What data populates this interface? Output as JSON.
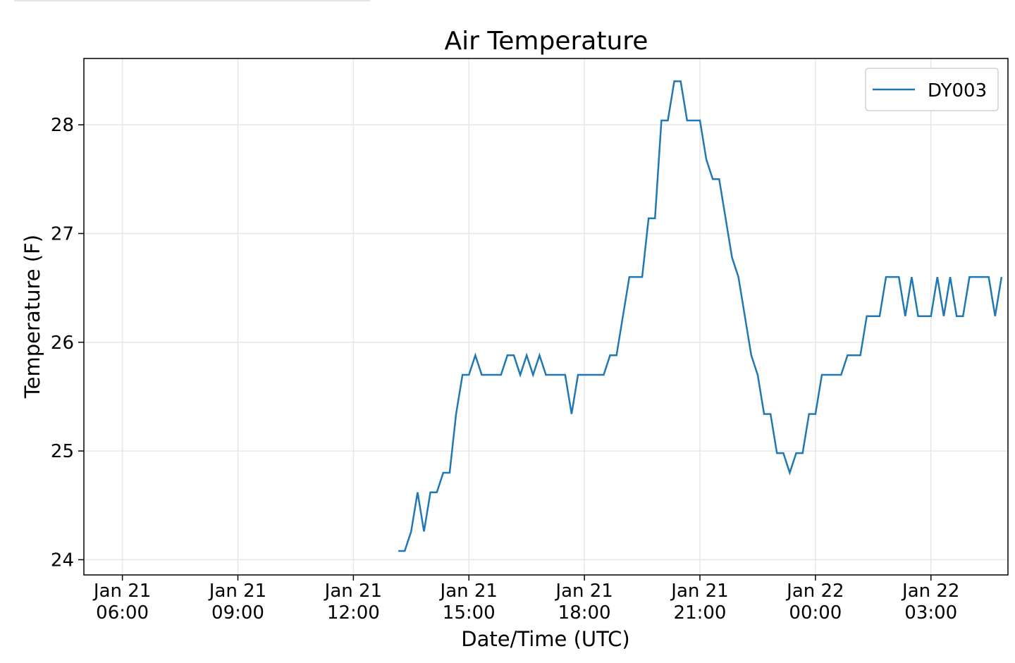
{
  "chart_data": {
    "type": "line",
    "title": "Air Temperature",
    "xlabel": "Date/Time (UTC)",
    "ylabel": "Temperature (F)",
    "x": [
      "Jan 21 13:10",
      "Jan 21 13:20",
      "Jan 21 13:30",
      "Jan 21 13:40",
      "Jan 21 13:50",
      "Jan 21 14:00",
      "Jan 21 14:10",
      "Jan 21 14:20",
      "Jan 21 14:30",
      "Jan 21 14:40",
      "Jan 21 14:50",
      "Jan 21 15:00",
      "Jan 21 15:10",
      "Jan 21 15:20",
      "Jan 21 15:30",
      "Jan 21 15:40",
      "Jan 21 15:50",
      "Jan 21 16:00",
      "Jan 21 16:10",
      "Jan 21 16:20",
      "Jan 21 16:30",
      "Jan 21 16:40",
      "Jan 21 16:50",
      "Jan 21 17:00",
      "Jan 21 17:10",
      "Jan 21 17:20",
      "Jan 21 17:30",
      "Jan 21 17:40",
      "Jan 21 17:50",
      "Jan 21 18:00",
      "Jan 21 18:10",
      "Jan 21 18:20",
      "Jan 21 18:30",
      "Jan 21 18:40",
      "Jan 21 18:50",
      "Jan 21 19:00",
      "Jan 21 19:10",
      "Jan 21 19:20",
      "Jan 21 19:30",
      "Jan 21 19:40",
      "Jan 21 19:50",
      "Jan 21 20:00",
      "Jan 21 20:10",
      "Jan 21 20:20",
      "Jan 21 20:30",
      "Jan 21 20:40",
      "Jan 21 20:50",
      "Jan 21 21:00",
      "Jan 21 21:10",
      "Jan 21 21:20",
      "Jan 21 21:30",
      "Jan 21 21:40",
      "Jan 21 21:50",
      "Jan 21 22:00",
      "Jan 21 22:10",
      "Jan 21 22:20",
      "Jan 21 22:30",
      "Jan 21 22:40",
      "Jan 21 22:50",
      "Jan 21 23:00",
      "Jan 21 23:10",
      "Jan 21 23:20",
      "Jan 21 23:30",
      "Jan 21 23:40",
      "Jan 21 23:50",
      "Jan 22 00:00",
      "Jan 22 00:10",
      "Jan 22 00:20",
      "Jan 22 00:30",
      "Jan 22 00:40",
      "Jan 22 00:50",
      "Jan 22 01:00",
      "Jan 22 01:10",
      "Jan 22 01:20",
      "Jan 22 01:30",
      "Jan 22 01:40",
      "Jan 22 01:50",
      "Jan 22 02:00",
      "Jan 22 02:10",
      "Jan 22 02:20",
      "Jan 22 02:30",
      "Jan 22 02:40",
      "Jan 22 02:50",
      "Jan 22 03:00",
      "Jan 22 03:10",
      "Jan 22 03:20",
      "Jan 22 03:30",
      "Jan 22 03:40",
      "Jan 22 03:50",
      "Jan 22 04:00",
      "Jan 22 04:10",
      "Jan 22 04:20",
      "Jan 22 04:30",
      "Jan 22 04:40",
      "Jan 22 04:50"
    ],
    "series": [
      {
        "name": "DY003",
        "color": "#1f77b4",
        "values": [
          24.08,
          24.08,
          24.26,
          24.62,
          24.26,
          24.62,
          24.62,
          24.8,
          24.8,
          25.34,
          25.7,
          25.7,
          25.88,
          25.7,
          25.7,
          25.7,
          25.7,
          25.88,
          25.88,
          25.7,
          25.88,
          25.7,
          25.88,
          25.7,
          25.7,
          25.7,
          25.7,
          25.34,
          25.7,
          25.7,
          25.7,
          25.7,
          25.7,
          25.88,
          25.88,
          26.24,
          26.6,
          26.6,
          26.6,
          27.14,
          27.14,
          28.04,
          28.04,
          28.4,
          28.4,
          28.04,
          28.04,
          28.04,
          27.68,
          27.5,
          27.5,
          27.14,
          26.78,
          26.6,
          26.24,
          25.88,
          25.7,
          25.34,
          25.34,
          24.98,
          24.98,
          24.8,
          24.98,
          24.98,
          25.34,
          25.34,
          25.7,
          25.7,
          25.7,
          25.7,
          25.88,
          25.88,
          25.88,
          26.24,
          26.24,
          26.24,
          26.6,
          26.6,
          26.6,
          26.24,
          26.6,
          26.24,
          26.24,
          26.24,
          26.6,
          26.24,
          26.6,
          26.24,
          26.24,
          26.6,
          26.6,
          26.6,
          26.6,
          26.24,
          26.6
        ]
      }
    ],
    "xlim": [
      "Jan 21 05:00",
      "Jan 22 05:00"
    ],
    "xticks": [
      {
        "value": "Jan 21 06:00",
        "label": "Jan 21\n06:00"
      },
      {
        "value": "Jan 21 09:00",
        "label": "Jan 21\n09:00"
      },
      {
        "value": "Jan 21 12:00",
        "label": "Jan 21\n12:00"
      },
      {
        "value": "Jan 21 15:00",
        "label": "Jan 21\n15:00"
      },
      {
        "value": "Jan 21 18:00",
        "label": "Jan 21\n18:00"
      },
      {
        "value": "Jan 21 21:00",
        "label": "Jan 21\n21:00"
      },
      {
        "value": "Jan 22 00:00",
        "label": "Jan 22\n00:00"
      },
      {
        "value": "Jan 22 03:00",
        "label": "Jan 22\n03:00"
      }
    ],
    "ylim": [
      23.86,
      28.61
    ],
    "yticks": [
      24,
      25,
      26,
      27,
      28
    ],
    "grid": true,
    "legend": "upper right"
  }
}
